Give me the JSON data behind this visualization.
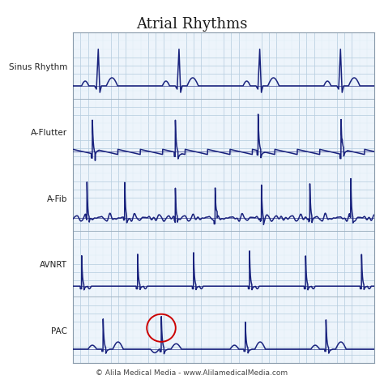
{
  "title": "Atrial Rhythms",
  "footer": "© Alila Medical Media - www.AlilamedicalMedia.com",
  "labels": [
    "Sinus Rhythm",
    "A-Flutter",
    "A-Fib",
    "AVNRT",
    "PAC"
  ],
  "ecg_color": "#1a237e",
  "grid_major_color": "#b8cfe0",
  "grid_minor_color": "#daeaf5",
  "background_color": "#edf4fb",
  "outer_background": "#ffffff",
  "title_fontsize": 13,
  "label_fontsize": 7.5,
  "footer_fontsize": 6.5,
  "pac_circle_color": "#cc0000"
}
